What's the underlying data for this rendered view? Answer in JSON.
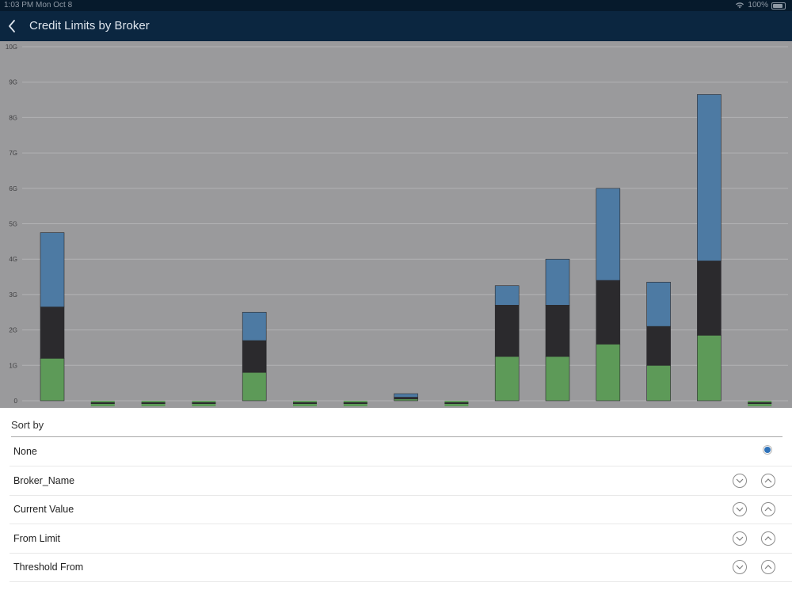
{
  "status_bar": {
    "time": "1:03 PM",
    "date": "Mon Oct 8",
    "battery": "100%"
  },
  "nav": {
    "title": "Credit Limits by Broker",
    "back_icon": "chevron-left-icon"
  },
  "colors": {
    "green": "#5d9a58",
    "black": "#2b2a2d",
    "blue": "#4d7aa3",
    "chart_bg": "#9a9a9c",
    "radio_selected": "#2f72b9"
  },
  "chart_data": {
    "type": "bar",
    "stacked": true,
    "categories": [
      "",
      "",
      "",
      "",
      "",
      "",
      "",
      "",
      "",
      "",
      "",
      "",
      "",
      "",
      ""
    ],
    "series": [
      {
        "values": [
          1.2,
          0.0,
          0.0,
          0.0,
          0.8,
          0.0,
          0.0,
          0.05,
          0.0,
          1.25,
          1.25,
          1.6,
          1.0,
          1.85,
          0.0
        ]
      },
      {
        "values": [
          1.45,
          0.0,
          0.0,
          0.0,
          0.9,
          0.0,
          0.0,
          0.05,
          0.0,
          1.45,
          1.45,
          1.8,
          1.1,
          2.1,
          0.0
        ]
      },
      {
        "values": [
          2.1,
          0.0,
          0.0,
          0.0,
          0.8,
          0.0,
          0.0,
          0.1,
          0.0,
          0.55,
          1.3,
          2.6,
          1.25,
          4.7,
          0.0
        ]
      }
    ],
    "ylim": [
      0,
      10
    ],
    "ytick_labels": [
      "0",
      "1G",
      "2G",
      "3G",
      "4G",
      "5G",
      "6G",
      "7G",
      "8G",
      "9G",
      "10G"
    ],
    "grid": true,
    "legend": "none"
  },
  "sort_sheet": {
    "header": "Sort by",
    "options": [
      {
        "label": "None",
        "selected": true
      },
      {
        "label": "Broker_Name"
      },
      {
        "label": "Current Value"
      },
      {
        "label": "From Limit"
      },
      {
        "label": "Threshold From"
      }
    ],
    "descending_icon": "chevron-down-circle-icon",
    "ascending_icon": "chevron-up-circle-icon"
  }
}
